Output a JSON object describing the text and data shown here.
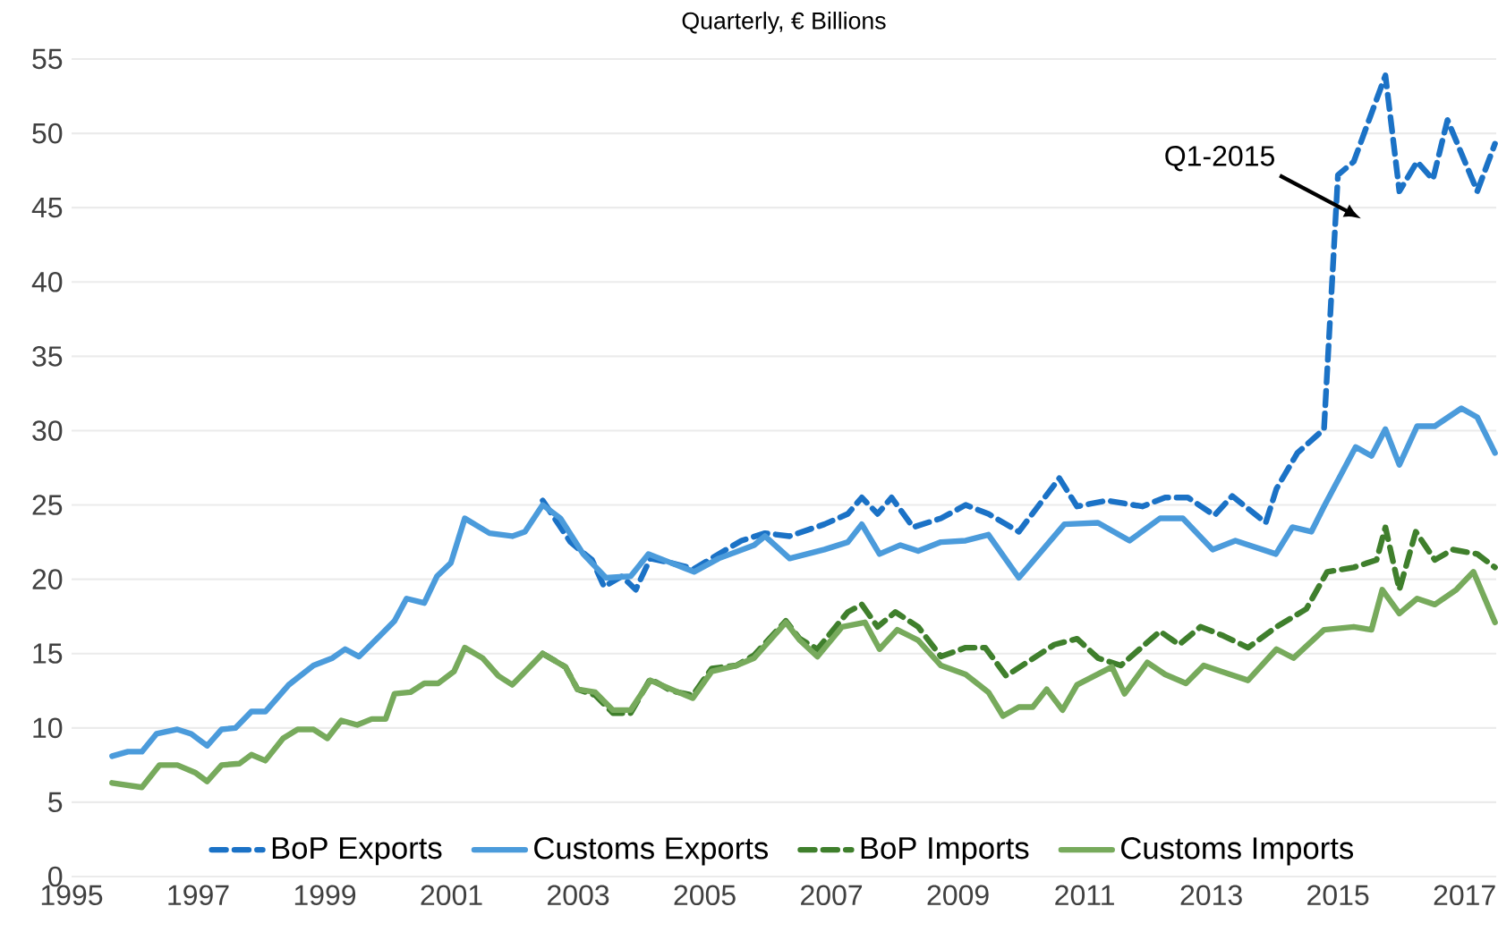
{
  "chart_data": {
    "type": "line",
    "title": "Quarterly, € Billions",
    "xlim": [
      1995,
      2017.5
    ],
    "ylim": [
      0,
      55
    ],
    "xticks": [
      1995,
      1997,
      1999,
      2001,
      2003,
      2005,
      2007,
      2009,
      2011,
      2013,
      2015,
      2017
    ],
    "yticks": [
      0,
      5,
      10,
      15,
      20,
      25,
      30,
      35,
      40,
      45,
      50,
      55
    ],
    "grid": "y",
    "legend": "bottom",
    "annotations": [
      "Q1-2015"
    ],
    "series": [
      {
        "name": "BoP Exports",
        "color": "#1b72c6",
        "line_style": "dashed",
        "x": [
          2002.44,
          2002.88,
          2003.22,
          2003.41,
          2003.69,
          2003.91,
          2004.14,
          2004.47,
          2004.83,
          2005.22,
          2005.58,
          2005.95,
          2006.34,
          2006.89,
          2007.26,
          2007.48,
          2007.73,
          2007.95,
          2008.29,
          2008.73,
          2009.12,
          2009.48,
          2009.96,
          2010.6,
          2010.88,
          2011.35,
          2011.91,
          2012.27,
          2012.63,
          2013.05,
          2013.33,
          2013.86,
          2014.03,
          2014.36,
          2014.78,
          2015.0,
          2015.25,
          2015.75,
          2015.97,
          2016.25,
          2016.5,
          2016.73,
          2017.2,
          2017.48
        ],
        "values": [
          25.3,
          22.5,
          21.3,
          19.5,
          20.2,
          19.3,
          21.4,
          21.1,
          20.7,
          21.7,
          22.6,
          23.1,
          22.9,
          23.7,
          24.4,
          25.5,
          24.4,
          25.5,
          23.5,
          24.1,
          25.0,
          24.4,
          23.2,
          26.8,
          24.9,
          25.3,
          24.9,
          25.5,
          25.5,
          24.3,
          25.6,
          23.8,
          26.1,
          28.5,
          30.1,
          47.2,
          48.1,
          53.9,
          46.1,
          48.1,
          46.9,
          50.9,
          46.1,
          49.3
        ]
      },
      {
        "name": "Customs Exports",
        "color": "#4b9bdb",
        "line_style": "solid",
        "x": [
          1995.64,
          1995.89,
          1996.11,
          1996.34,
          1996.67,
          1996.89,
          1997.14,
          1997.37,
          1997.59,
          1997.84,
          1998.06,
          1998.43,
          1998.82,
          1999.12,
          1999.32,
          1999.54,
          1999.87,
          2000.1,
          2000.29,
          2000.57,
          2000.77,
          2000.99,
          2001.21,
          2001.6,
          2001.96,
          2002.16,
          2002.44,
          2002.72,
          2003.08,
          2003.44,
          2003.83,
          2004.11,
          2004.47,
          2004.83,
          2005.22,
          2005.78,
          2005.95,
          2006.34,
          2006.89,
          2007.26,
          2007.48,
          2007.76,
          2008.09,
          2008.37,
          2008.73,
          2009.12,
          2009.48,
          2009.96,
          2010.68,
          2011.21,
          2011.71,
          2012.19,
          2012.55,
          2013.02,
          2013.38,
          2014.02,
          2014.28,
          2014.58,
          2014.78,
          2015.28,
          2015.53,
          2015.75,
          2015.97,
          2016.25,
          2016.53,
          2016.95,
          2017.2,
          2017.48
        ],
        "values": [
          8.1,
          8.4,
          8.4,
          9.6,
          9.9,
          9.6,
          8.8,
          9.9,
          10.0,
          11.1,
          11.1,
          12.9,
          14.2,
          14.7,
          15.3,
          14.8,
          16.2,
          17.2,
          18.7,
          18.4,
          20.2,
          21.1,
          24.1,
          23.1,
          22.9,
          23.2,
          25.0,
          24.1,
          21.7,
          20.1,
          20.2,
          21.7,
          21.1,
          20.5,
          21.4,
          22.3,
          22.9,
          21.4,
          22.0,
          22.5,
          23.7,
          21.7,
          22.3,
          21.9,
          22.5,
          22.6,
          23.0,
          20.1,
          23.7,
          23.8,
          22.6,
          24.1,
          24.1,
          22.0,
          22.6,
          21.7,
          23.5,
          23.2,
          24.9,
          28.9,
          28.3,
          30.1,
          27.7,
          30.3,
          30.3,
          31.5,
          30.9,
          28.5
        ]
      },
      {
        "name": "BoP Imports",
        "color": "#3f7f2c",
        "line_style": "dashed",
        "x": [
          2002.44,
          2002.8,
          2002.99,
          2003.27,
          2003.55,
          2003.83,
          2004.14,
          2004.47,
          2004.81,
          2005.11,
          2005.5,
          2005.78,
          2006.28,
          2006.5,
          2006.78,
          2007.26,
          2007.48,
          2007.73,
          2008.01,
          2008.37,
          2008.73,
          2009.12,
          2009.43,
          2009.76,
          2010.52,
          2010.88,
          2011.21,
          2011.57,
          2012.19,
          2012.49,
          2012.83,
          2013.19,
          2013.58,
          2014.03,
          2014.5,
          2014.83,
          2015.25,
          2015.61,
          2015.75,
          2015.97,
          2016.23,
          2016.53,
          2016.81,
          2017.2,
          2017.48
        ],
        "values": [
          15.0,
          14.1,
          12.6,
          12.2,
          11.0,
          11.0,
          13.3,
          12.5,
          12.2,
          14.0,
          14.2,
          14.9,
          17.2,
          16.0,
          15.3,
          17.8,
          18.3,
          16.8,
          17.8,
          16.8,
          14.8,
          15.4,
          15.4,
          13.5,
          15.6,
          16.0,
          14.7,
          14.2,
          16.5,
          15.6,
          16.8,
          16.2,
          15.4,
          16.8,
          18.0,
          20.5,
          20.8,
          21.3,
          23.5,
          19.3,
          23.2,
          21.3,
          22.0,
          21.7,
          20.8
        ]
      },
      {
        "name": "Customs Imports",
        "color": "#77aa5c",
        "line_style": "solid",
        "x": [
          1995.64,
          1996.11,
          1996.39,
          1996.67,
          1996.95,
          1997.14,
          1997.37,
          1997.65,
          1997.84,
          1998.06,
          1998.34,
          1998.57,
          1998.82,
          1999.04,
          1999.26,
          1999.51,
          1999.74,
          1999.96,
          2000.1,
          2000.35,
          2000.57,
          2000.79,
          2001.04,
          2001.21,
          2001.49,
          2001.74,
          2001.96,
          2002.44,
          2002.8,
          2002.99,
          2003.27,
          2003.55,
          2003.83,
          2004.14,
          2004.47,
          2004.81,
          2005.11,
          2005.5,
          2005.78,
          2006.28,
          2006.5,
          2006.78,
          2007.17,
          2007.53,
          2007.76,
          2008.04,
          2008.37,
          2008.73,
          2009.12,
          2009.48,
          2009.71,
          2009.96,
          2010.18,
          2010.4,
          2010.65,
          2010.88,
          2011.43,
          2011.63,
          2011.99,
          2012.27,
          2012.6,
          2012.88,
          2013.16,
          2013.58,
          2014.03,
          2014.3,
          2014.78,
          2015.25,
          2015.53,
          2015.7,
          2015.97,
          2016.25,
          2016.53,
          2016.87,
          2017.14,
          2017.48
        ],
        "values": [
          6.3,
          6.0,
          7.5,
          7.5,
          7.0,
          6.4,
          7.5,
          7.6,
          8.2,
          7.8,
          9.3,
          9.9,
          9.9,
          9.3,
          10.5,
          10.2,
          10.6,
          10.6,
          12.3,
          12.4,
          13.0,
          13.0,
          13.8,
          15.4,
          14.7,
          13.5,
          12.9,
          15.0,
          14.1,
          12.6,
          12.4,
          11.2,
          11.2,
          13.2,
          12.6,
          12.0,
          13.8,
          14.2,
          14.7,
          17.1,
          15.9,
          14.8,
          16.8,
          17.1,
          15.3,
          16.6,
          15.9,
          14.2,
          13.6,
          12.4,
          10.8,
          11.4,
          11.4,
          12.6,
          11.2,
          12.9,
          14.1,
          12.3,
          14.4,
          13.6,
          13.0,
          14.2,
          13.8,
          13.2,
          15.3,
          14.7,
          16.6,
          16.8,
          16.6,
          19.3,
          17.7,
          18.7,
          18.3,
          19.3,
          20.5,
          17.1
        ]
      }
    ]
  }
}
